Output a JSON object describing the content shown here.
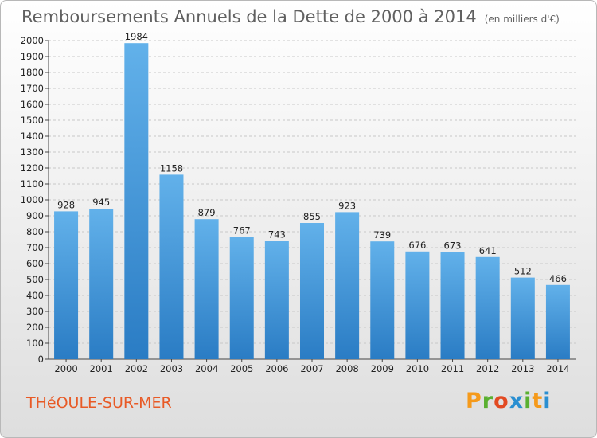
{
  "title": "Remboursements Annuels de la Dette de 2000 à 2014",
  "unit": "(en milliers d'€)",
  "location": "THéOULE-SUR-MER",
  "brand": {
    "letters": [
      "P",
      "r",
      "o",
      "x",
      "i",
      "t",
      "i"
    ],
    "colors": [
      "#f59a1b",
      "#5ab031",
      "#e24a22",
      "#2a8fd1",
      "#5ab031",
      "#f59a1b",
      "#2a8fd1"
    ]
  },
  "colors": {
    "bar_top": "#62b1ea",
    "bar_bottom": "#2a7cc4",
    "grid": "#c8c8c8",
    "title": "#606060",
    "location": "#e85a26"
  },
  "chart_data": {
    "type": "bar",
    "categories": [
      "2000",
      "2001",
      "2002",
      "2003",
      "2004",
      "2005",
      "2006",
      "2007",
      "2008",
      "2009",
      "2010",
      "2011",
      "2012",
      "2013",
      "2014"
    ],
    "values": [
      928,
      945,
      1984,
      1158,
      879,
      767,
      743,
      855,
      923,
      739,
      676,
      673,
      641,
      512,
      466
    ],
    "ylim": [
      0,
      2000
    ],
    "ytick_step": 100,
    "grid": true,
    "xlabel": "",
    "ylabel": ""
  }
}
